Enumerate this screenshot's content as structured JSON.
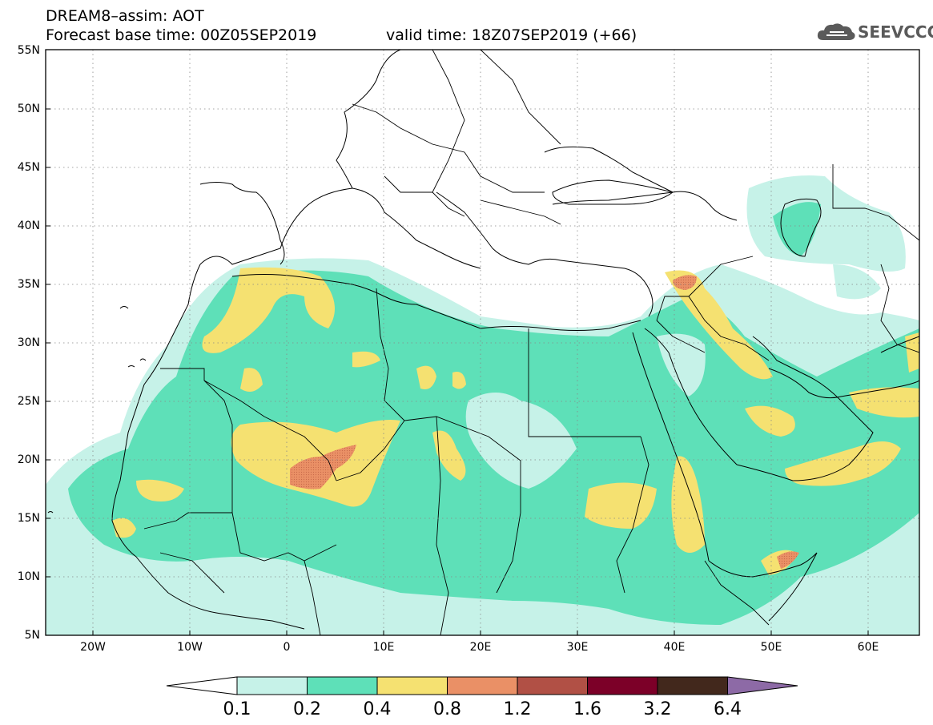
{
  "header": {
    "title_line1": "DREAM8–assim: AOT",
    "title_line2": "Forecast base time: 00Z05SEP2019",
    "valid_time": "valid time: 18Z07SEP2019 (+66)",
    "logo_text": "SEEVCCC"
  },
  "axes": {
    "lat_labels": [
      "55N",
      "50N",
      "45N",
      "40N",
      "35N",
      "30N",
      "25N",
      "20N",
      "15N",
      "10N",
      "5N"
    ],
    "lon_labels": [
      "20W",
      "10W",
      "0",
      "10E",
      "20E",
      "30E",
      "40E",
      "50E",
      "60E"
    ]
  },
  "colorbar": {
    "labels": [
      "0.1",
      "0.2",
      "0.4",
      "0.8",
      "1.2",
      "1.6",
      "3.2",
      "6.4"
    ],
    "colors": [
      "#ffffff",
      "#c6f2e8",
      "#5ee0b8",
      "#f5e171",
      "#ea9066",
      "#b15045",
      "#7c0028",
      "#42281c",
      "#8d6aa6"
    ]
  },
  "map": {
    "variable": "Aerosol Optical Thickness (AOT)",
    "lat_range": [
      5,
      55
    ],
    "lon_range": [
      -25,
      65
    ],
    "grid": "dotted"
  }
}
